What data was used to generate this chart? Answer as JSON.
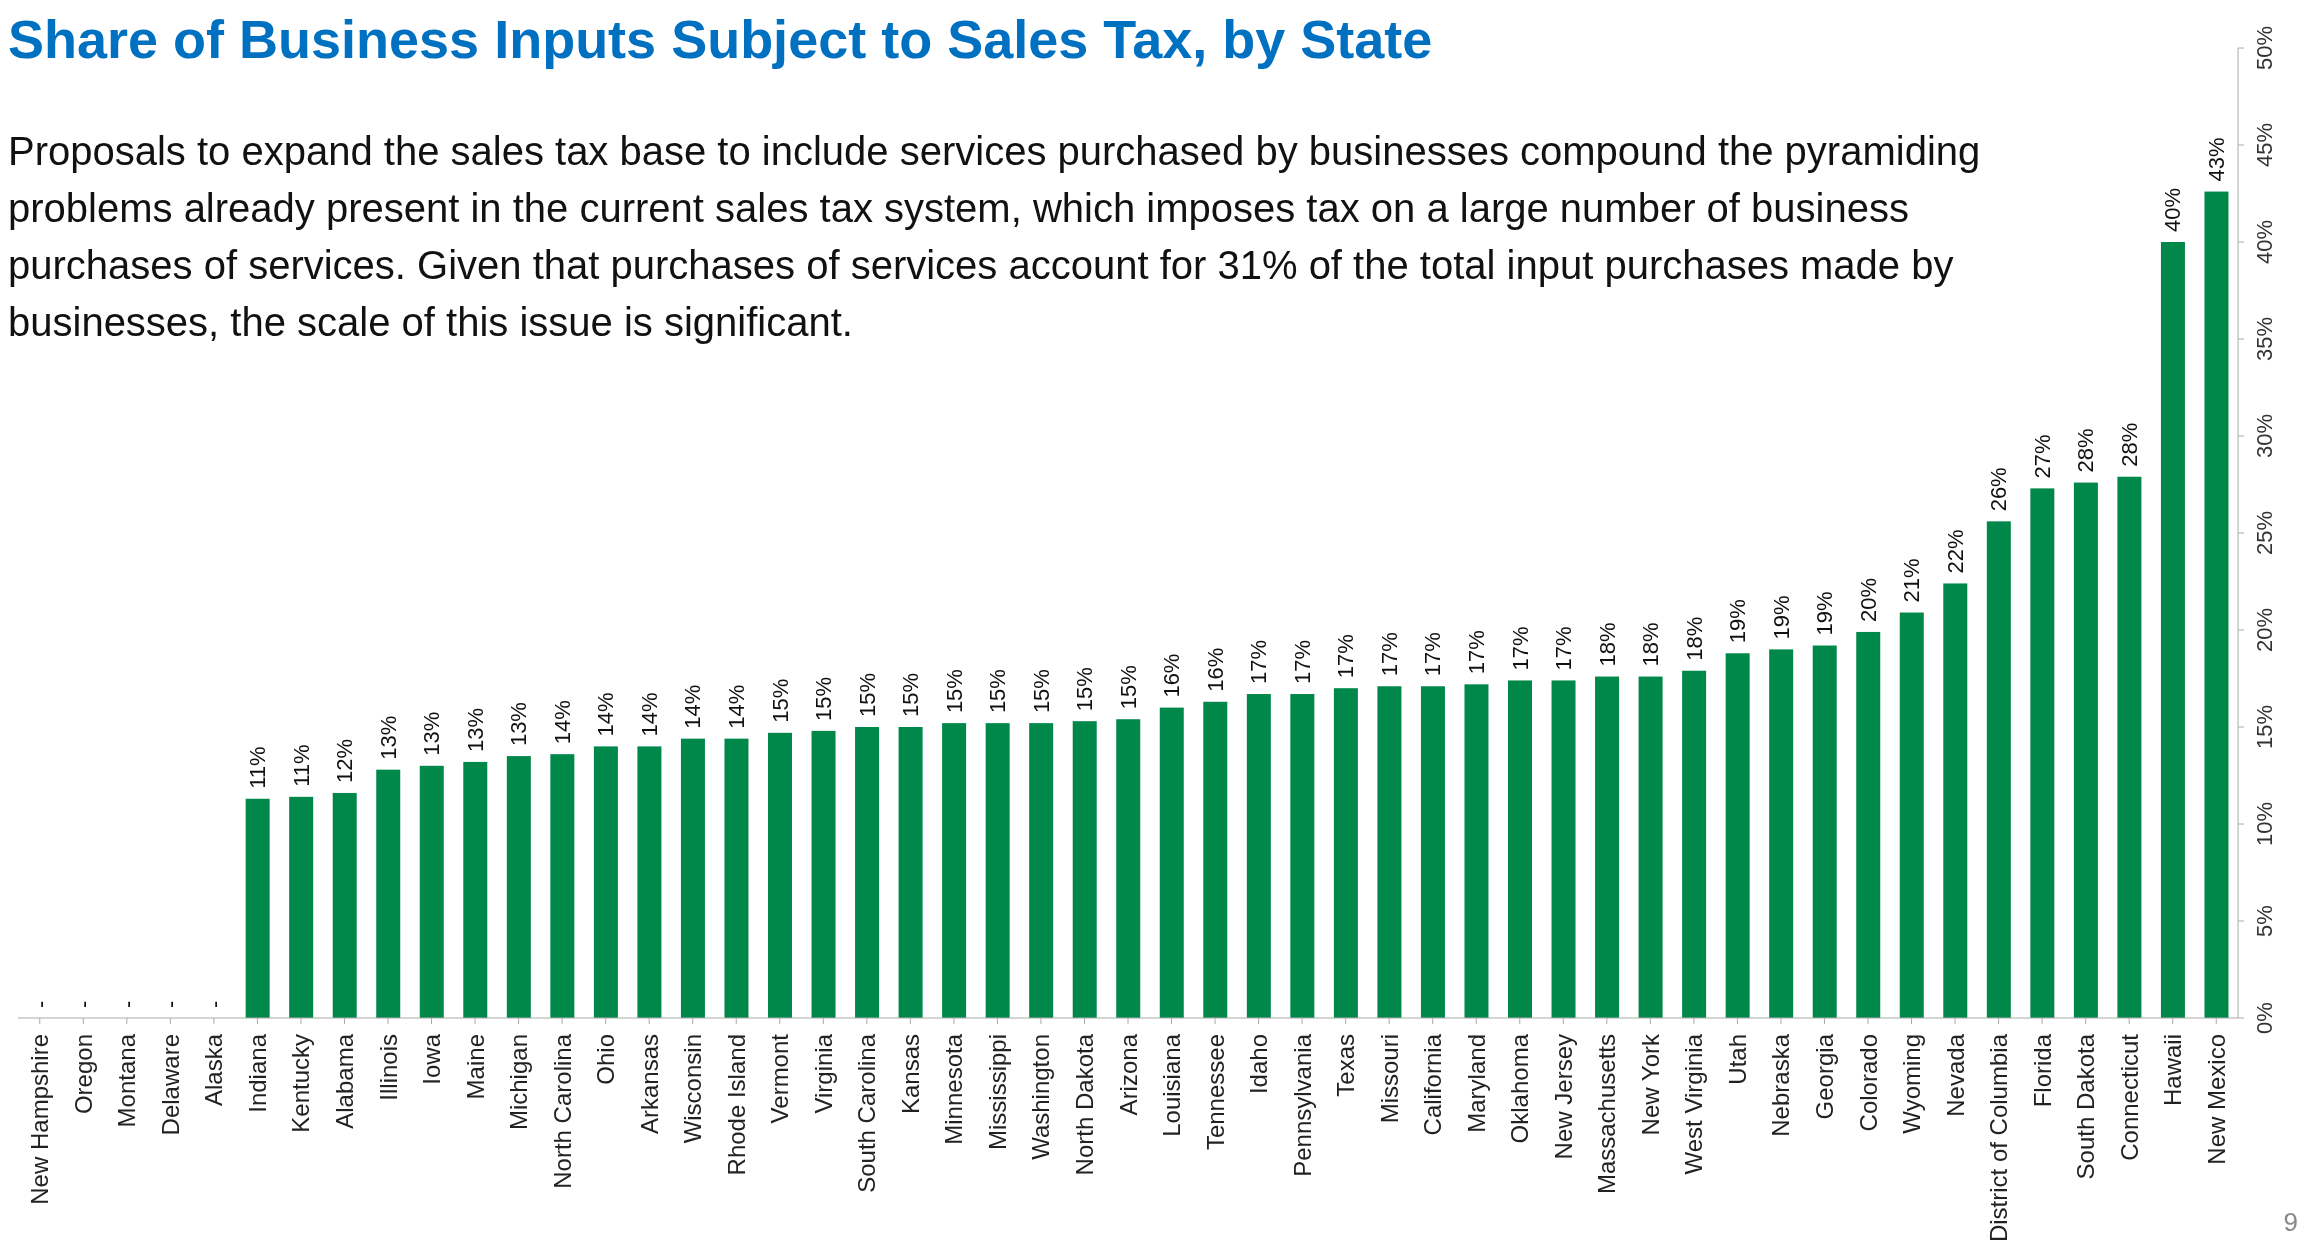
{
  "chart_data": {
    "type": "bar",
    "title": "Share of Business Inputs Subject to Sales Tax, by State",
    "subtitle": "Proposals to expand the sales tax base to include services purchased by businesses compound the pyramiding problems already present in the current sales tax system, which imposes tax on a large number of business purchases of services. Given that purchases of services account for 31% of the total input purchases made by businesses, the scale of this issue is significant.",
    "categories": [
      "New Hampshire",
      "Oregon",
      "Montana",
      "Delaware",
      "Alaska",
      "Indiana",
      "Kentucky",
      "Alabama",
      "Illinois",
      "Iowa",
      "Maine",
      "Michigan",
      "North Carolina",
      "Ohio",
      "Arkansas",
      "Wisconsin",
      "Rhode Island",
      "Vermont",
      "Virginia",
      "South Carolina",
      "Kansas",
      "Minnesota",
      "Mississippi",
      "Washington",
      "North Dakota",
      "Arizona",
      "Louisiana",
      "Tennessee",
      "Idaho",
      "Pennsylvania",
      "Texas",
      "Missouri",
      "California",
      "Maryland",
      "Oklahoma",
      "New Jersey",
      "Massachusetts",
      "New York",
      "West Virginia",
      "Utah",
      "Nebraska",
      "Georgia",
      "Colorado",
      "Wyoming",
      "Nevada",
      "District of Columbia",
      "Florida",
      "South Dakota",
      "Connecticut",
      "Hawaii",
      "New Mexico"
    ],
    "values": [
      0,
      0,
      0,
      0,
      0,
      11.3,
      11.4,
      11.6,
      12.8,
      13.0,
      13.2,
      13.5,
      13.6,
      14.0,
      14.0,
      14.4,
      14.4,
      14.7,
      14.8,
      15.0,
      15.0,
      15.2,
      15.2,
      15.2,
      15.3,
      15.4,
      16.0,
      16.3,
      16.7,
      16.7,
      17.0,
      17.1,
      17.1,
      17.2,
      17.4,
      17.4,
      17.6,
      17.6,
      17.9,
      18.8,
      19.0,
      19.2,
      19.9,
      20.9,
      22.4,
      25.6,
      27.3,
      27.6,
      27.9,
      40.0,
      42.6
    ],
    "value_labels": [
      "-",
      "-",
      "-",
      "-",
      "-",
      "11%",
      "11%",
      "12%",
      "13%",
      "13%",
      "13%",
      "13%",
      "14%",
      "14%",
      "14%",
      "14%",
      "14%",
      "15%",
      "15%",
      "15%",
      "15%",
      "15%",
      "15%",
      "15%",
      "15%",
      "15%",
      "16%",
      "16%",
      "17%",
      "17%",
      "17%",
      "17%",
      "17%",
      "17%",
      "17%",
      "17%",
      "18%",
      "18%",
      "18%",
      "19%",
      "19%",
      "19%",
      "20%",
      "21%",
      "22%",
      "26%",
      "27%",
      "28%",
      "28%",
      "40%",
      "43%"
    ],
    "color": "#00884a",
    "ylim": [
      0,
      50
    ],
    "yticks": [
      {
        "value": 0,
        "label": "0%"
      },
      {
        "value": 5,
        "label": "5%"
      },
      {
        "value": 10,
        "label": "10%"
      },
      {
        "value": 15,
        "label": "15%"
      },
      {
        "value": 20,
        "label": "20%"
      },
      {
        "value": 25,
        "label": "25%"
      },
      {
        "value": 30,
        "label": "30%"
      },
      {
        "value": 35,
        "label": "35%"
      },
      {
        "value": 40,
        "label": "40%"
      },
      {
        "value": 45,
        "label": "45%"
      },
      {
        "value": 50,
        "label": "50%"
      }
    ],
    "grid": false,
    "legend": false,
    "annotations": [
      "9"
    ]
  }
}
